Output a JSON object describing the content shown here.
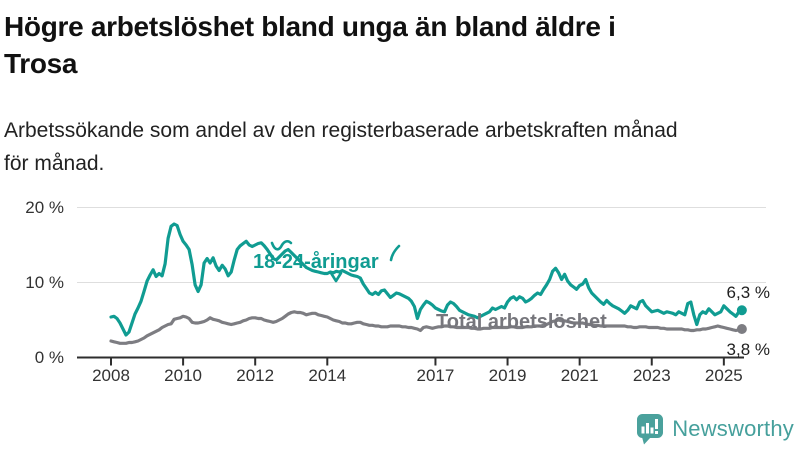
{
  "header": {
    "title_lines": [
      "Högre arbetslöshet bland unga än bland äldre i",
      "Trosa"
    ],
    "subtitle_lines": [
      "Arbetssökande som andel av den registerbaserade arbetskraften månad",
      "för månad."
    ]
  },
  "chart_data": {
    "type": "line",
    "title": "Högre arbetslöshet bland unga än bland äldre i Trosa",
    "subtitle": "Arbetssökande som andel av den registerbaserade arbetskraften månad för månad.",
    "unit": "%",
    "x_range": {
      "start": "2008-01",
      "end": "2025-07"
    },
    "x_ticks": [
      2008,
      2010,
      2012,
      2014,
      2017,
      2019,
      2021,
      2023,
      2025
    ],
    "y_ticks": [
      {
        "value": 0,
        "label": "0 %"
      },
      {
        "value": 10,
        "label": "10 %"
      },
      {
        "value": 20,
        "label": "20 %"
      }
    ],
    "ylim": [
      0,
      20
    ],
    "grid": "horizontal",
    "legend_position": "inline-annotations",
    "series": [
      {
        "name": "18-24-åringar",
        "color": "#109c92",
        "start": "2008-01",
        "end_label": "6,3 %",
        "end_value": 6.3,
        "monthly_values": [
          5.4,
          5.5,
          5.2,
          4.6,
          3.8,
          3.0,
          3.4,
          4.6,
          5.8,
          6.6,
          7.5,
          8.8,
          10.2,
          11.0,
          11.7,
          10.8,
          11.2,
          10.9,
          12.5,
          15.9,
          17.5,
          17.8,
          17.6,
          16.4,
          15.5,
          15.0,
          14.4,
          12.4,
          9.7,
          8.8,
          9.7,
          12.6,
          13.2,
          12.6,
          13.3,
          12.2,
          11.6,
          12.3,
          11.8,
          10.9,
          11.4,
          13.0,
          14.4,
          14.9,
          15.2,
          15.5,
          15.0,
          14.8,
          15.0,
          15.2,
          15.3,
          14.9,
          14.4,
          13.8,
          13.2,
          13.0,
          13.4,
          13.8,
          14.2,
          14.4,
          14.0,
          13.6,
          13.2,
          12.8,
          12.4,
          12.0,
          11.8,
          11.6,
          11.5,
          11.4,
          11.3,
          11.2,
          11.2,
          11.4,
          11.3,
          11.5,
          11.4,
          11.6,
          11.4,
          11.2,
          11.0,
          10.9,
          10.8,
          10.6,
          9.8,
          9.2,
          8.6,
          8.4,
          8.7,
          8.4,
          8.9,
          9.0,
          8.5,
          8.0,
          8.3,
          8.6,
          8.5,
          8.3,
          8.1,
          7.9,
          7.5,
          6.8,
          5.2,
          6.4,
          7.0,
          7.5,
          7.3,
          7.0,
          6.6,
          6.4,
          6.2,
          6.1,
          7.0,
          7.4,
          7.2,
          6.8,
          6.3,
          6.1,
          5.9,
          5.7,
          5.6,
          5.5,
          5.3,
          5.5,
          5.7,
          5.9,
          6.1,
          6.6,
          6.4,
          6.6,
          6.8,
          6.6,
          7.4,
          7.9,
          8.1,
          7.7,
          8.1,
          7.9,
          7.4,
          7.6,
          7.9,
          8.3,
          8.6,
          8.4,
          9.1,
          9.7,
          10.4,
          11.5,
          11.9,
          11.3,
          10.4,
          11.1,
          10.2,
          9.7,
          9.4,
          9.1,
          9.6,
          9.8,
          10.4,
          9.3,
          8.6,
          8.2,
          7.8,
          7.4,
          7.1,
          7.6,
          7.2,
          6.9,
          6.7,
          6.5,
          6.2,
          5.9,
          6.3,
          6.9,
          6.7,
          6.5,
          7.4,
          7.6,
          6.9,
          6.5,
          6.1,
          6.2,
          6.3,
          6.1,
          5.9,
          6.1,
          6.0,
          5.9,
          5.7,
          6.1,
          5.9,
          5.7,
          7.2,
          7.4,
          5.7,
          4.4,
          5.7,
          6.1,
          5.9,
          6.5,
          6.1,
          5.7,
          5.9,
          6.1,
          6.9,
          6.5,
          6.1,
          5.8,
          5.5,
          6.1,
          6.3
        ]
      },
      {
        "name": "Total arbetslöshet",
        "color": "#7d7d82",
        "start": "2008-01",
        "end_label": "3,8 %",
        "end_value": 3.8,
        "monthly_values": [
          2.2,
          2.1,
          2.0,
          1.9,
          1.9,
          1.9,
          2.0,
          2.0,
          2.1,
          2.2,
          2.4,
          2.6,
          2.9,
          3.1,
          3.3,
          3.5,
          3.7,
          4.0,
          4.2,
          4.4,
          4.5,
          5.1,
          5.2,
          5.3,
          5.5,
          5.4,
          5.2,
          4.7,
          4.6,
          4.6,
          4.7,
          4.8,
          5.0,
          5.3,
          5.1,
          5.0,
          4.9,
          4.7,
          4.6,
          4.5,
          4.4,
          4.5,
          4.6,
          4.7,
          4.9,
          5.0,
          5.2,
          5.3,
          5.3,
          5.2,
          5.2,
          5.0,
          4.9,
          4.8,
          4.7,
          4.8,
          5.0,
          5.2,
          5.5,
          5.8,
          6.0,
          6.1,
          6.0,
          6.0,
          5.9,
          5.7,
          5.8,
          5.9,
          5.9,
          5.7,
          5.6,
          5.5,
          5.4,
          5.2,
          5.0,
          4.9,
          4.8,
          4.6,
          4.6,
          4.5,
          4.5,
          4.6,
          4.7,
          4.7,
          4.5,
          4.4,
          4.3,
          4.3,
          4.2,
          4.2,
          4.1,
          4.1,
          4.1,
          4.2,
          4.2,
          4.2,
          4.2,
          4.1,
          4.1,
          4.0,
          4.0,
          3.9,
          3.8,
          3.6,
          4.0,
          4.1,
          4.0,
          3.9,
          4.0,
          4.1,
          4.1,
          4.2,
          4.2,
          4.1,
          4.1,
          4.0,
          4.0,
          4.0,
          4.0,
          4.0,
          3.9,
          3.9,
          3.8,
          3.8,
          3.9,
          3.9,
          3.9,
          4.0,
          4.0,
          4.0,
          4.0,
          4.0,
          4.0,
          4.1,
          4.1,
          4.0,
          4.0,
          4.0,
          4.1,
          4.1,
          4.1,
          4.2,
          4.2,
          4.2,
          4.3,
          4.4,
          4.6,
          4.8,
          4.9,
          5.0,
          4.9,
          4.9,
          4.8,
          4.7,
          4.6,
          4.6,
          4.6,
          4.6,
          4.5,
          4.4,
          4.4,
          4.3,
          4.3,
          4.2,
          4.2,
          4.2,
          4.2,
          4.2,
          4.2,
          4.2,
          4.2,
          4.2,
          4.1,
          4.1,
          4.0,
          4.0,
          4.1,
          4.1,
          4.1,
          4.0,
          4.0,
          4.0,
          4.0,
          3.9,
          3.9,
          3.8,
          3.8,
          3.8,
          3.8,
          3.8,
          3.8,
          3.7,
          3.7,
          3.6,
          3.6,
          3.7,
          3.7,
          3.8,
          3.8,
          3.9,
          4.0,
          4.1,
          4.2,
          4.1,
          4.0,
          3.9,
          3.8,
          3.7,
          3.6,
          3.7,
          3.8
        ]
      }
    ],
    "colors": {
      "grid": "#dedede",
      "axis": "#2e2e2e",
      "tick_label": "#333333",
      "end_label": "#1f1f1f"
    }
  },
  "footer": {
    "brand": "Newsworthy",
    "brand_color": "#46a09c",
    "brand_icon_color": "#4aa19c"
  }
}
